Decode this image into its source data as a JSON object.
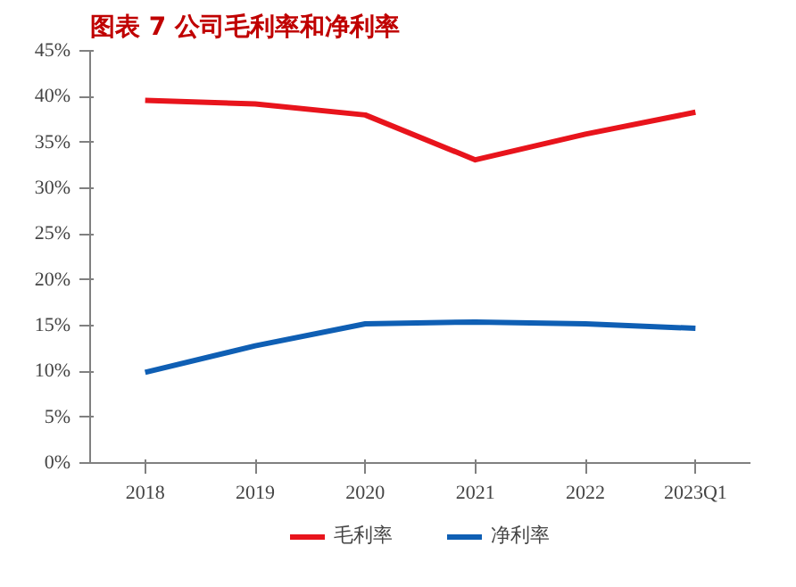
{
  "chart_data": {
    "type": "line",
    "title": "图表 7   公司毛利率和净利率",
    "categories": [
      "2018",
      "2019",
      "2020",
      "2021",
      "2022",
      "2023Q1"
    ],
    "series": [
      {
        "name": "毛利率",
        "color": "#e8141c",
        "values": [
          39.6,
          39.2,
          38.0,
          33.1,
          35.9,
          38.3
        ]
      },
      {
        "name": "净利率",
        "color": "#0f5fb4",
        "values": [
          9.9,
          12.8,
          15.2,
          15.4,
          15.2,
          14.7
        ]
      }
    ],
    "ylim": [
      0,
      45
    ],
    "yticks": [
      {
        "value": 0,
        "label": "0%"
      },
      {
        "value": 5,
        "label": "5%"
      },
      {
        "value": 10,
        "label": "10%"
      },
      {
        "value": 15,
        "label": "15%"
      },
      {
        "value": 20,
        "label": "20%"
      },
      {
        "value": 25,
        "label": "25%"
      },
      {
        "value": 30,
        "label": "30%"
      },
      {
        "value": 35,
        "label": "35%"
      },
      {
        "value": 40,
        "label": "40%"
      },
      {
        "value": 45,
        "label": "45%"
      }
    ],
    "grid": false,
    "legend": "bottom",
    "marker": "none",
    "line_style": "solid"
  }
}
